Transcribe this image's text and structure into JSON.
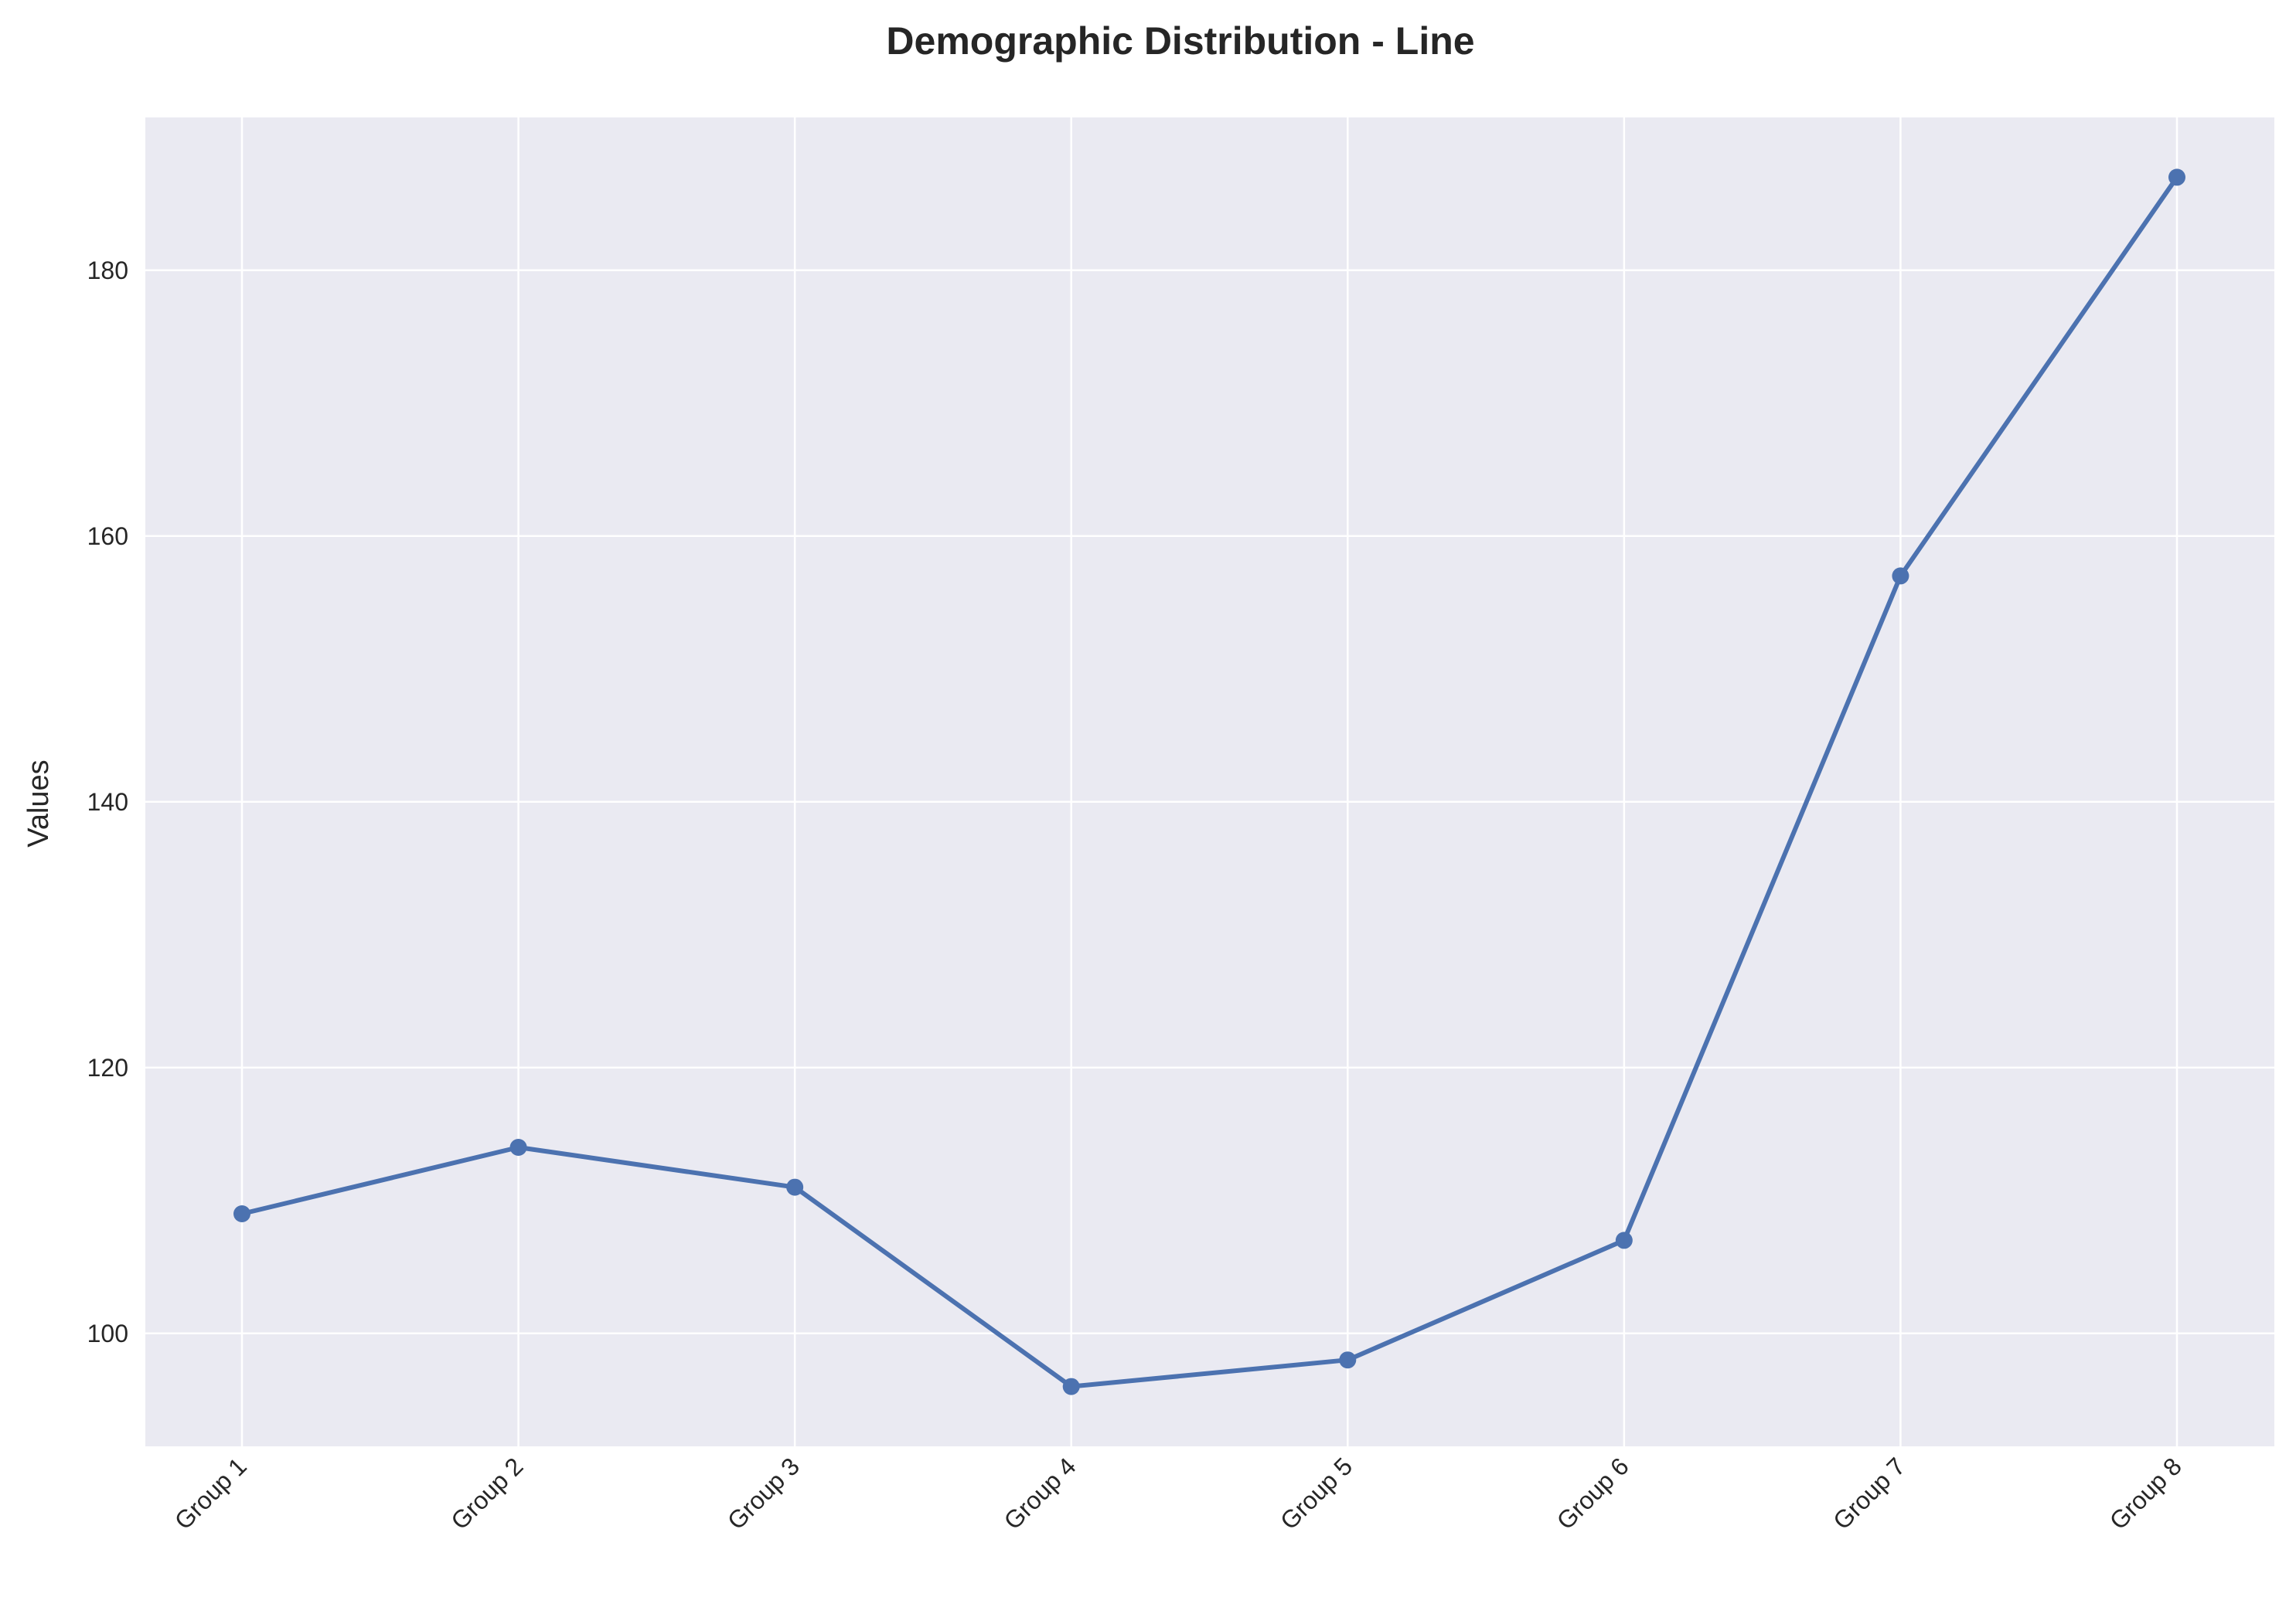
{
  "chart_data": {
    "type": "line",
    "title": "Demographic Distribution - Line",
    "xlabel": "",
    "ylabel": "Values",
    "categories": [
      "Group 1",
      "Group 2",
      "Group 3",
      "Group 4",
      "Group 5",
      "Group 6",
      "Group 7",
      "Group 8"
    ],
    "series": [
      {
        "values": [
          109,
          114,
          111,
          96,
          98,
          107,
          157,
          187
        ],
        "color": "#4c72b0"
      }
    ],
    "ylim": [
      91.5,
      191.5
    ],
    "yticks": [
      100,
      120,
      140,
      160,
      180
    ],
    "ytick_labels": [
      "100",
      "120",
      "140",
      "160",
      "180"
    ],
    "grid": true,
    "legend": "none",
    "background_color": "#eaeaf2",
    "grid_color": "#ffffff",
    "marker": "circle"
  }
}
